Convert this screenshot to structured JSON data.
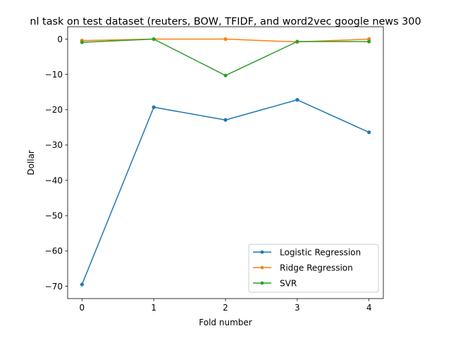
{
  "chart_data": {
    "type": "line",
    "title": "nl task on test dataset (reuters, BOW, TFIDF, and word2vec google news 300",
    "xlabel": "Fold number",
    "ylabel": "Dollar",
    "x": [
      0,
      1,
      2,
      3,
      4
    ],
    "xlim": [
      -0.2,
      4.2
    ],
    "ylim": [
      -73.5,
      3.5
    ],
    "xticks": [
      0,
      1,
      2,
      3,
      4
    ],
    "xtick_labels": [
      "0",
      "1",
      "2",
      "3",
      "4"
    ],
    "yticks": [
      0,
      -10,
      -20,
      -30,
      -40,
      -50,
      -60,
      -70
    ],
    "ytick_labels": [
      "0",
      "−10",
      "−20",
      "−30",
      "−40",
      "−50",
      "−60",
      "−70"
    ],
    "grid": false,
    "legend_position": "lower-right",
    "series": [
      {
        "name": "Logistic Regression",
        "color": "#1f77b4",
        "values": [
          -69.5,
          -19.3,
          -22.9,
          -17.2,
          -26.4
        ]
      },
      {
        "name": "Ridge Regression",
        "color": "#ff7f0e",
        "values": [
          -0.4,
          0.0,
          0.0,
          -0.8,
          0.0
        ]
      },
      {
        "name": "SVR",
        "color": "#2ca02c",
        "values": [
          -0.9,
          0.0,
          -10.3,
          -0.7,
          -0.7
        ]
      }
    ]
  }
}
